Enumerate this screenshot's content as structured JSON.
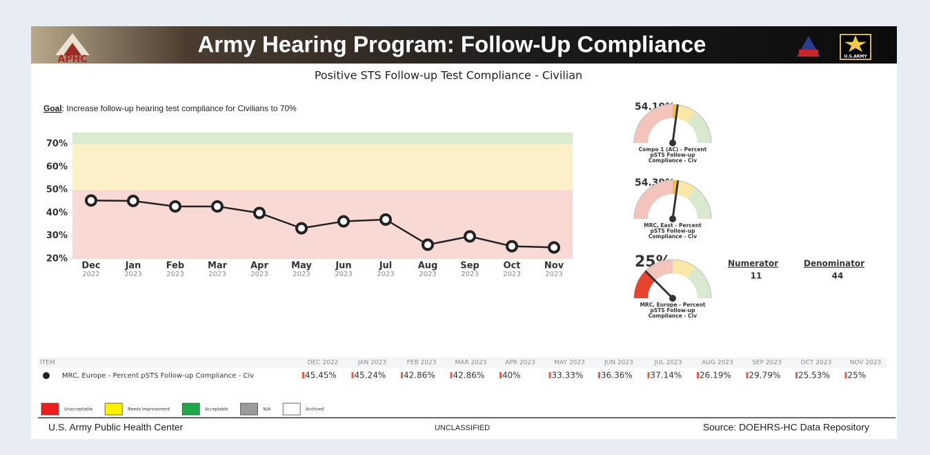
{
  "header": {
    "title": "Army Hearing Program: Follow-Up Compliance",
    "logo_text": "APHC",
    "army_text": "U.S.ARMY"
  },
  "subtitle": "Positive STS Follow-up Test Compliance - Civilian",
  "goal": {
    "label": "Goal",
    "text": ": Increase follow-up hearing test compliance for Civilians to 70%"
  },
  "chart_data": {
    "type": "line",
    "categories": [
      "Dec",
      "Jan",
      "Feb",
      "Mar",
      "Apr",
      "May",
      "Jun",
      "Jul",
      "Aug",
      "Sep",
      "Oct",
      "Nov"
    ],
    "category_years": [
      "2022",
      "2023",
      "2023",
      "2023",
      "2023",
      "2023",
      "2023",
      "2023",
      "2023",
      "2023",
      "2023",
      "2023"
    ],
    "values": [
      45.45,
      45.24,
      42.86,
      42.86,
      40,
      33.33,
      36.36,
      37.14,
      26.19,
      29.79,
      25.53,
      25
    ],
    "color": "#222222",
    "ylim": [
      20,
      75
    ],
    "yticks": [
      {
        "value": 20,
        "label": "20%"
      },
      {
        "value": 30,
        "label": "30%"
      },
      {
        "value": 40,
        "label": "40%"
      },
      {
        "value": 50,
        "label": "50%"
      },
      {
        "value": 60,
        "label": "60%"
      },
      {
        "value": 70,
        "label": "70%"
      }
    ],
    "bands": [
      {
        "from": 20,
        "to": 50,
        "color": "#f8d9d4"
      },
      {
        "from": 50,
        "to": 70,
        "color": "#fbf0c8"
      },
      {
        "from": 70,
        "to": 75,
        "color": "#d9ecd0"
      }
    ]
  },
  "gauges": {
    "glim": [
      0,
      100
    ],
    "bands": [
      {
        "from": 0,
        "to": 50,
        "color": "#f3c4bc",
        "strong": "#e8432e"
      },
      {
        "from": 50,
        "to": 70,
        "color": "#fbe7a6",
        "strong": "#f6c231"
      },
      {
        "from": 70,
        "to": 100,
        "color": "#d8e9cf",
        "strong": "#5aa845"
      }
    ],
    "items": [
      {
        "value": 54.19,
        "value_label": "54.19%",
        "label": [
          "Compo 1 (AC) - Percent",
          "pSTS Follow-up",
          "Compliance - Civ"
        ]
      },
      {
        "value": 54.39,
        "value_label": "54.39%",
        "label": [
          "MRC, East - Percent",
          "pSTS Follow-up",
          "Compliance - Civ"
        ]
      },
      {
        "value": 25,
        "value_label": "25%",
        "label": [
          "MRC, Europe - Percent",
          "pSTS Follow-up",
          "Compliance - Civ"
        ]
      }
    ]
  },
  "counts": {
    "numerator_label": "Numerator",
    "numerator": "11",
    "denominator_label": "Denominator",
    "denominator": "44"
  },
  "table": {
    "header": [
      "ITEM",
      "DEC 2022",
      "JAN 2023",
      "FEB 2023",
      "MAR 2023",
      "APR 2023",
      "MAY 2023",
      "JUN 2023",
      "JUL 2023",
      "AUG 2023",
      "SEP 2023",
      "OCT 2023",
      "NOV 2023"
    ],
    "rows": [
      [
        "MRC, Europe - Percent pSTS Follow-up Compliance - Civ",
        "45.45%",
        "45.24%",
        "42.86%",
        "42.86%",
        "40%",
        "33.33%",
        "36.36%",
        "37.14%",
        "26.19%",
        "29.79%",
        "25.53%",
        "25%"
      ]
    ]
  },
  "legend": [
    {
      "label": "Unacceptable",
      "color": "#ee1c1c"
    },
    {
      "label": "Needs Improvement",
      "color": "#fff200"
    },
    {
      "label": "Acceptable",
      "color": "#1fa84a"
    },
    {
      "label": "N/A",
      "color": "#9a9a9a"
    },
    {
      "label": "Archived",
      "color": "#ffffff"
    }
  ],
  "footer": {
    "left": "U.S. Army Public Health Center",
    "center": "UNCLASSIFIED",
    "right": "Source:  DOEHRS-HC Data Repository"
  }
}
